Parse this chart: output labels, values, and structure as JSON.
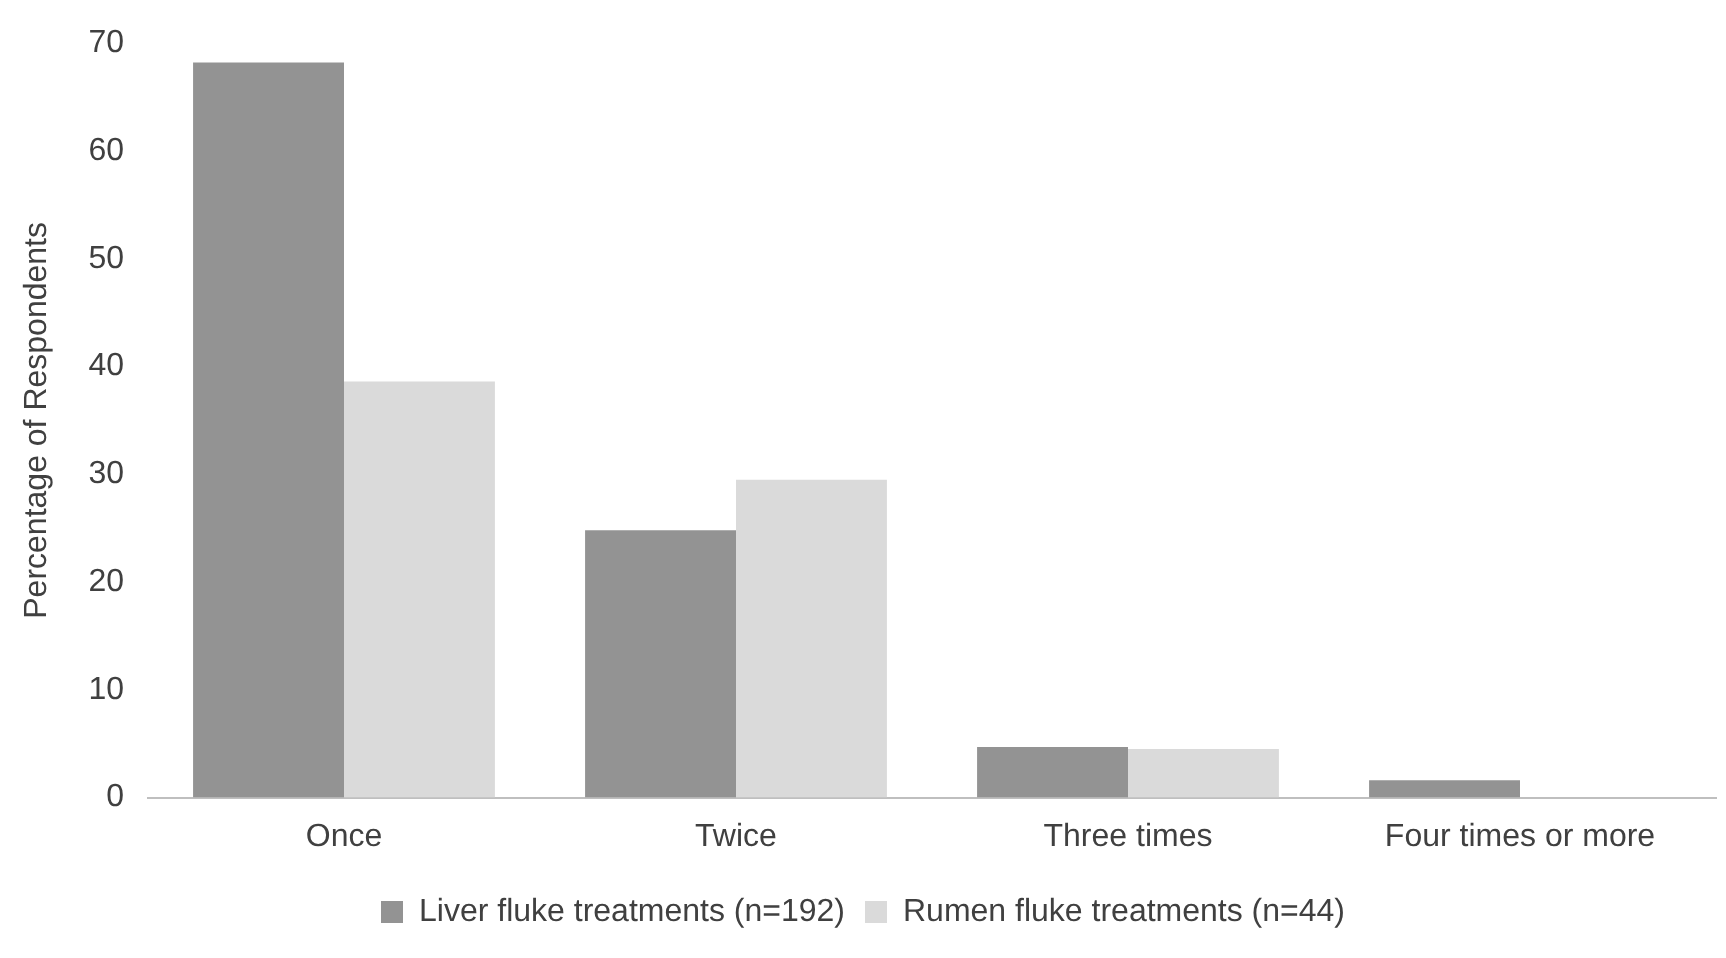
{
  "chart_data": {
    "type": "bar",
    "ylabel": "Percentage of Respondents",
    "categories": [
      "Once",
      "Twice",
      "Three times",
      "Four times or more"
    ],
    "series": [
      {
        "name": "Liver fluke treatments (n=192)",
        "color": "#939393",
        "values": [
          68.2,
          24.8,
          4.7,
          1.6
        ]
      },
      {
        "name": "Rumen fluke treatments (n=44)",
        "color": "#dadada",
        "values": [
          38.6,
          29.5,
          4.5,
          0
        ]
      }
    ],
    "ylim": [
      0,
      70
    ],
    "yticks": [
      0,
      10,
      20,
      30,
      40,
      50,
      60,
      70
    ],
    "grid": false,
    "legend": "bottom"
  }
}
